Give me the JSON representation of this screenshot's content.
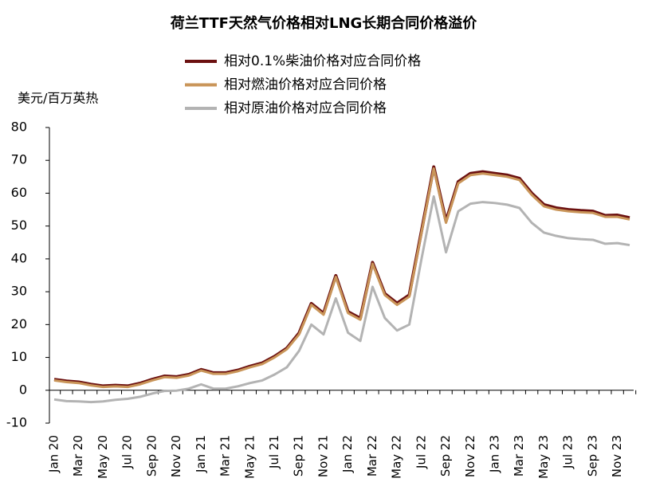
{
  "chart_data": {
    "type": "line",
    "title": "荷兰TTF天然气价格相对LNG长期合同价格溢价",
    "y_label": "美元/百万英热",
    "categories": [
      "Jan 20",
      null,
      "Mar 20",
      null,
      "May 20",
      null,
      "Jul 20",
      null,
      "Sep 20",
      null,
      "Nov 20",
      null,
      "Jan 21",
      null,
      "Mar 21",
      null,
      "May 21",
      null,
      "Jul 21",
      null,
      "Sep 21",
      null,
      "Nov 21",
      null,
      "Jan 22",
      null,
      "Mar 22",
      null,
      "May 22",
      null,
      "Jul 22",
      null,
      "Sep 22",
      null,
      "Nov 22",
      null,
      "Jan 23",
      null,
      "Mar 23",
      null,
      "May 23",
      null,
      "Jul 23",
      null,
      "Sep 23",
      null,
      "Nov 23",
      null
    ],
    "series": [
      {
        "name": "相对0.1%柴油价格对应合同价格",
        "color": "#6b1010",
        "values": [
          3.3,
          2.8,
          2.5,
          1.8,
          1.3,
          1.5,
          1.3,
          2.1,
          3.3,
          4.3,
          4.1,
          4.8,
          6.3,
          5.3,
          5.3,
          6.1,
          7.3,
          8.3,
          10.3,
          12.8,
          17.4,
          26.4,
          23.4,
          34.9,
          23.9,
          21.9,
          38.9,
          29.4,
          26.5,
          29,
          48.5,
          68,
          51.5,
          63.5,
          66,
          66.5,
          66,
          65.5,
          64.5,
          60,
          56.5,
          55.5,
          55,
          54.7,
          54.5,
          53.2,
          53.3,
          52.5
        ]
      },
      {
        "name": "相对燃油价格对应合同价格",
        "color": "#c99559",
        "values": [
          3,
          2.5,
          2.2,
          1.5,
          1,
          1.2,
          1,
          1.8,
          3,
          4,
          3.8,
          4.5,
          6,
          5,
          5,
          5.8,
          7,
          8,
          10,
          12.5,
          17,
          26,
          23,
          34.5,
          23.5,
          21.5,
          38.5,
          29,
          26,
          28.5,
          48,
          67.5,
          51,
          63,
          65.5,
          66,
          65.5,
          65,
          64,
          59.5,
          56,
          55,
          54.5,
          54.2,
          54,
          52.8,
          52.8,
          52
        ]
      },
      {
        "name": "相对原油价格对应合同价格",
        "color": "#b3b3b3",
        "values": [
          -2.8,
          -3.3,
          -3.4,
          -3.6,
          -3.4,
          -2.9,
          -2.6,
          -2,
          -1,
          -0.2,
          -0.1,
          0.5,
          1.8,
          0.5,
          0.5,
          1.2,
          2.2,
          3,
          4.8,
          7,
          12,
          20,
          17,
          28,
          17.5,
          15,
          31.5,
          22,
          18.2,
          20,
          40,
          59,
          42,
          54.5,
          56.8,
          57.3,
          57,
          56.5,
          55.5,
          51,
          48,
          47,
          46.3,
          46,
          45.8,
          44.6,
          44.8,
          44.2
        ]
      }
    ],
    "ylim": [
      -10,
      80
    ],
    "yticks": [
      -10,
      0,
      10,
      20,
      30,
      40,
      50,
      60,
      70,
      80
    ],
    "grid": false
  }
}
